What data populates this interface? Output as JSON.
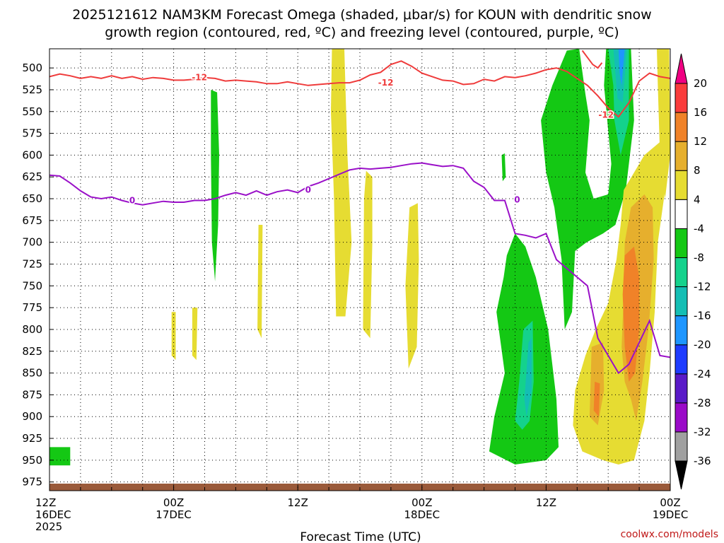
{
  "chart_data": {
    "type": "heatmap",
    "title_line1": "2025121612 NAM3KM Forecast Omega (shaded, μbar/s) for KOUN with dendritic snow",
    "title_line2": "growth region (contoured, red, ºC) and freezing level (contoured, purple, ºC)",
    "xlabel": "Forecast Time (UTC)",
    "x_unit": "forecast hours from 2025121612",
    "x_range": [
      0,
      60
    ],
    "y_unit": "pressure (hPa)",
    "y_range": [
      478,
      985
    ],
    "y_ticks": [
      500,
      525,
      550,
      575,
      600,
      625,
      650,
      675,
      700,
      725,
      750,
      775,
      800,
      825,
      850,
      875,
      900,
      925,
      950,
      975
    ],
    "x_ticks": [
      {
        "hour": 0,
        "lines": [
          "12Z",
          "16DEC",
          "2025"
        ]
      },
      {
        "hour": 12,
        "lines": [
          "00Z",
          "17DEC"
        ]
      },
      {
        "hour": 24,
        "lines": [
          "12Z"
        ]
      },
      {
        "hour": 36,
        "lines": [
          "00Z",
          "18DEC"
        ]
      },
      {
        "hour": 48,
        "lines": [
          "12Z"
        ]
      },
      {
        "hour": 60,
        "lines": [
          "00Z",
          "19DEC"
        ]
      }
    ],
    "colorbar": {
      "levels": [
        -36,
        -32,
        -28,
        -24,
        -20,
        -16,
        -12,
        -8,
        -4,
        4,
        8,
        12,
        16,
        20
      ],
      "colors": [
        "#000000",
        "#a0a0a0",
        "#9a0ac8",
        "#5a1ac8",
        "#1e3cff",
        "#1e96ff",
        "#14beb4",
        "#14d28c",
        "#14c814",
        "#ffffff",
        "#e6dc32",
        "#e6af2d",
        "#f08228",
        "#fa3c3c",
        "#f00082"
      ]
    },
    "contour_labels": {
      "dgz": "-12",
      "freezing": "0"
    },
    "dgz_top_minus12C": {
      "hours": [
        0,
        1,
        2,
        3,
        4,
        5,
        6,
        7,
        8,
        9,
        10,
        11,
        12,
        13,
        14,
        15,
        16,
        17,
        18,
        19,
        20,
        21,
        22,
        23,
        24,
        25,
        26,
        27,
        28,
        29,
        30,
        31,
        32,
        33,
        34,
        35,
        36,
        37,
        38,
        39,
        40,
        41,
        42,
        43,
        44,
        45,
        46,
        47,
        48,
        49,
        50,
        51,
        52,
        53,
        54,
        55,
        56,
        57,
        58,
        59,
        60
      ],
      "hpa": [
        510,
        507,
        509,
        512,
        510,
        512,
        509,
        512,
        510,
        513,
        511,
        512,
        514,
        514,
        513,
        511,
        512,
        515,
        514,
        515,
        516,
        518,
        518,
        516,
        518,
        520,
        519,
        518,
        517,
        517,
        514,
        508,
        505,
        496,
        492,
        498,
        506,
        510,
        514,
        515,
        519,
        518,
        513,
        515,
        510,
        511,
        509,
        506,
        502,
        500,
        504,
        512,
        520,
        532,
        546,
        556,
        540,
        515,
        506,
        510,
        512
      ]
    },
    "dgz_bottom_contour": {
      "hours": [
        51.5,
        52.0,
        52.5,
        53.0,
        53.4
      ],
      "hpa": [
        480,
        488,
        496,
        500,
        494
      ]
    },
    "freezing_level_0C": {
      "hours": [
        0,
        1,
        2,
        3,
        4,
        5,
        6,
        7,
        8,
        9,
        10,
        11,
        12,
        13,
        14,
        15,
        16,
        17,
        18,
        19,
        20,
        21,
        22,
        23,
        24,
        25,
        26,
        27,
        28,
        29,
        30,
        31,
        32,
        33,
        34,
        35,
        36,
        37,
        38,
        39,
        40,
        41,
        42,
        43,
        44,
        45,
        46,
        47,
        48,
        49,
        50,
        51,
        52,
        53,
        54,
        55,
        56,
        57,
        58,
        59,
        60
      ],
      "hpa": [
        623,
        624,
        632,
        641,
        648,
        650,
        648,
        652,
        655,
        657,
        655,
        653,
        654,
        654,
        652,
        652,
        650,
        646,
        643,
        646,
        641,
        646,
        642,
        640,
        643,
        636,
        632,
        627,
        622,
        617,
        615,
        616,
        615,
        614,
        612,
        610,
        609,
        611,
        613,
        612,
        615,
        630,
        637,
        652,
        652,
        690,
        692,
        695,
        690,
        720,
        730,
        740,
        750,
        810,
        830,
        850,
        840,
        815,
        790,
        830,
        832
      ]
    },
    "omega_regions": [
      {
        "level": -4,
        "poly": [
          [
            0,
            935
          ],
          [
            2,
            935
          ],
          [
            2,
            956
          ],
          [
            0,
            956
          ]
        ]
      },
      {
        "level": -4,
        "poly": [
          [
            15.6,
            525
          ],
          [
            16.2,
            528
          ],
          [
            16.4,
            600
          ],
          [
            16.3,
            680
          ],
          [
            16.0,
            745
          ],
          [
            15.7,
            700
          ],
          [
            15.6,
            600
          ]
        ]
      },
      {
        "level": 4,
        "poly": [
          [
            27.3,
            478
          ],
          [
            28.5,
            478
          ],
          [
            28.8,
            600
          ],
          [
            29.2,
            700
          ],
          [
            28.6,
            785
          ],
          [
            27.7,
            785
          ],
          [
            27.5,
            650
          ],
          [
            27.2,
            550
          ]
        ]
      },
      {
        "level": 4,
        "poly": [
          [
            30.6,
            618
          ],
          [
            31.2,
            625
          ],
          [
            31.2,
            700
          ],
          [
            31.0,
            810
          ],
          [
            30.3,
            800
          ],
          [
            30.4,
            650
          ]
        ]
      },
      {
        "level": 4,
        "poly": [
          [
            34.8,
            660
          ],
          [
            35.6,
            655
          ],
          [
            35.7,
            720
          ],
          [
            35.5,
            820
          ],
          [
            34.7,
            845
          ],
          [
            34.4,
            750
          ]
        ]
      },
      {
        "level": 4,
        "poly": [
          [
            20.2,
            680
          ],
          [
            20.6,
            680
          ],
          [
            20.5,
            810
          ],
          [
            20.1,
            800
          ]
        ]
      },
      {
        "level": 4,
        "poly": [
          [
            13.8,
            775
          ],
          [
            14.3,
            775
          ],
          [
            14.2,
            835
          ],
          [
            13.8,
            830
          ]
        ]
      },
      {
        "level": 4,
        "poly": [
          [
            11.8,
            780
          ],
          [
            12.2,
            780
          ],
          [
            12.2,
            835
          ],
          [
            11.8,
            830
          ]
        ]
      },
      {
        "level": -4,
        "poly": [
          [
            43.7,
            600
          ],
          [
            44.0,
            598
          ],
          [
            44.1,
            625
          ],
          [
            43.8,
            630
          ]
        ]
      },
      {
        "level": -4,
        "poly": [
          [
            44.2,
            715
          ],
          [
            45.0,
            690
          ],
          [
            46.0,
            705
          ],
          [
            47.0,
            740
          ],
          [
            48.2,
            800
          ],
          [
            49.0,
            880
          ],
          [
            49.2,
            935
          ],
          [
            48.0,
            950
          ],
          [
            45.0,
            955
          ],
          [
            42.5,
            940
          ],
          [
            43.0,
            900
          ],
          [
            44.0,
            850
          ],
          [
            43.2,
            780
          ],
          [
            43.9,
            740
          ]
        ]
      },
      {
        "level": -8,
        "poly": [
          [
            45.8,
            800
          ],
          [
            46.7,
            790
          ],
          [
            46.8,
            860
          ],
          [
            46.4,
            905
          ],
          [
            45.7,
            915
          ],
          [
            45.0,
            905
          ],
          [
            45.4,
            860
          ]
        ]
      },
      {
        "level": -12,
        "poly": [
          [
            46.3,
            815
          ],
          [
            46.6,
            810
          ],
          [
            46.6,
            870
          ],
          [
            46.1,
            900
          ],
          [
            45.9,
            880
          ]
        ]
      },
      {
        "level": -4,
        "poly": [
          [
            50.0,
            480
          ],
          [
            51.2,
            478
          ],
          [
            51.8,
            530
          ],
          [
            52.2,
            560
          ],
          [
            51.8,
            620
          ],
          [
            52.6,
            650
          ],
          [
            54.0,
            645
          ],
          [
            54.3,
            610
          ],
          [
            53.6,
            520
          ],
          [
            53.8,
            478
          ],
          [
            56.2,
            478
          ],
          [
            56.5,
            560
          ],
          [
            55.7,
            640
          ],
          [
            54.7,
            680
          ],
          [
            53.5,
            690
          ],
          [
            51.9,
            700
          ],
          [
            50.8,
            710
          ],
          [
            50.5,
            780
          ],
          [
            49.8,
            800
          ],
          [
            49.5,
            720
          ],
          [
            48.8,
            660
          ],
          [
            48.0,
            620
          ],
          [
            47.5,
            560
          ],
          [
            48.6,
            520
          ]
        ]
      },
      {
        "level": -8,
        "poly": [
          [
            54.0,
            478
          ],
          [
            56.0,
            478
          ],
          [
            56.0,
            560
          ],
          [
            55.2,
            600
          ],
          [
            54.6,
            560
          ],
          [
            54.5,
            520
          ]
        ]
      },
      {
        "level": -12,
        "poly": [
          [
            54.5,
            478
          ],
          [
            55.8,
            478
          ],
          [
            55.4,
            540
          ],
          [
            54.9,
            535
          ]
        ]
      },
      {
        "level": -16,
        "poly": [
          [
            55.0,
            478
          ],
          [
            55.6,
            478
          ],
          [
            55.3,
            520
          ],
          [
            55.1,
            505
          ]
        ]
      },
      {
        "level": 4,
        "poly": [
          [
            55.5,
            640
          ],
          [
            57.5,
            600
          ],
          [
            59.0,
            585
          ],
          [
            59.5,
            640
          ],
          [
            58.8,
            700
          ],
          [
            58.5,
            780
          ],
          [
            58.0,
            850
          ],
          [
            57.5,
            905
          ],
          [
            56.5,
            950
          ],
          [
            55.0,
            955
          ],
          [
            53.5,
            950
          ],
          [
            51.5,
            940
          ],
          [
            50.6,
            910
          ],
          [
            50.8,
            870
          ],
          [
            51.8,
            830
          ],
          [
            52.8,
            800
          ],
          [
            54.0,
            770
          ],
          [
            54.8,
            720
          ],
          [
            55.2,
            680
          ]
        ]
      },
      {
        "level": 8,
        "poly": [
          [
            56.2,
            660
          ],
          [
            57.5,
            645
          ],
          [
            58.3,
            660
          ],
          [
            58.4,
            720
          ],
          [
            57.9,
            800
          ],
          [
            57.3,
            860
          ],
          [
            56.7,
            905
          ],
          [
            56.2,
            880
          ],
          [
            55.6,
            860
          ],
          [
            55.3,
            820
          ],
          [
            55.5,
            760
          ],
          [
            55.6,
            700
          ]
        ]
      },
      {
        "level": 12,
        "poly": [
          [
            55.6,
            715
          ],
          [
            56.5,
            705
          ],
          [
            57.0,
            740
          ],
          [
            57.0,
            800
          ],
          [
            56.6,
            850
          ],
          [
            56.0,
            860
          ],
          [
            55.6,
            820
          ],
          [
            55.4,
            760
          ]
        ]
      },
      {
        "level": 8,
        "poly": [
          [
            52.4,
            820
          ],
          [
            53.5,
            815
          ],
          [
            53.6,
            870
          ],
          [
            53.0,
            910
          ],
          [
            52.2,
            900
          ]
        ]
      },
      {
        "level": 12,
        "poly": [
          [
            52.7,
            860
          ],
          [
            53.2,
            862
          ],
          [
            53.1,
            900
          ],
          [
            52.6,
            893
          ]
        ]
      },
      {
        "level": 4,
        "poly": [
          [
            58.7,
            478
          ],
          [
            59.9,
            478
          ],
          [
            60.0,
            600
          ],
          [
            59.5,
            650
          ],
          [
            59.0,
            600
          ],
          [
            58.8,
            520
          ]
        ]
      }
    ]
  },
  "credit": "coolwx.com/models"
}
